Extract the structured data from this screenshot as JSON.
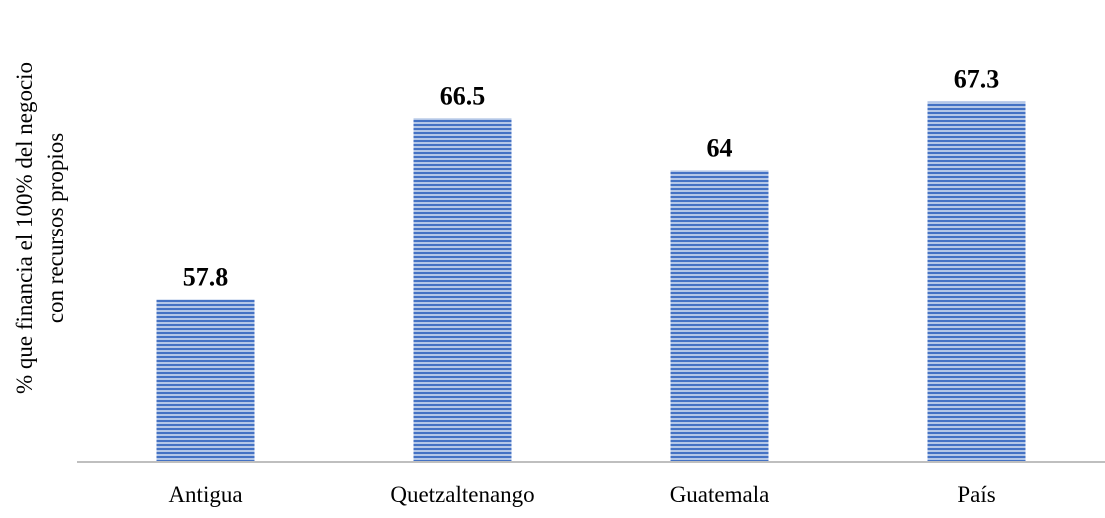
{
  "chart_data": {
    "type": "bar",
    "title": "",
    "xlabel": "",
    "ylabel_lines": [
      "% que financia el 100% del negocio",
      "con recursos propios"
    ],
    "categories": [
      "Antigua",
      "Quetzaltenango",
      "Guatemala",
      "País"
    ],
    "values": [
      57.8,
      66.5,
      64,
      67.3
    ],
    "value_labels": [
      "57.8",
      "66.5",
      "64",
      "67.3"
    ],
    "ylim": [
      50,
      69.3
    ],
    "grid": false,
    "legend": "none",
    "bar_color": "#4472c4",
    "bar_stripe_color": "#b4c7e7",
    "axis_color": "#bfbfbf"
  }
}
